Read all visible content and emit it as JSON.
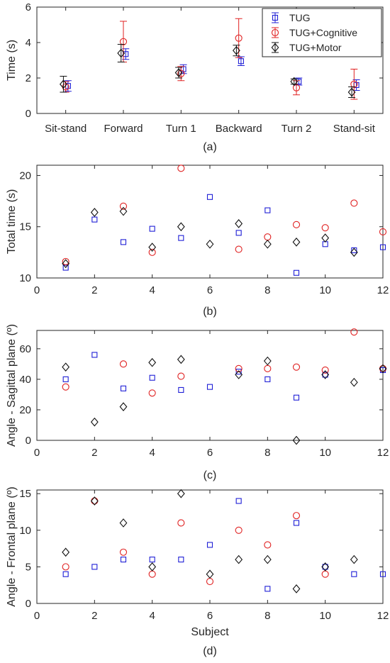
{
  "colors": {
    "TUG": "#1f1fd6",
    "TUG+Cognitive": "#e02020",
    "TUG+Motor": "#111111",
    "axis": "#262626"
  },
  "chart_data": [
    {
      "type": "scatter",
      "caption": "(a)",
      "xlabel": "",
      "ylabel": "Time (s)",
      "categories": [
        "Sit-stand",
        "Forward",
        "Turn 1",
        "Backward",
        "Turn 2",
        "Stand-sit"
      ],
      "ylim": [
        0,
        6
      ],
      "yticks": [
        0,
        2,
        4,
        6
      ],
      "legend": {
        "placement": "top-right",
        "entries": [
          "TUG",
          "TUG+Cognitive",
          "TUG+Motor"
        ]
      },
      "series": [
        {
          "name": "TUG",
          "marker": "square",
          "offset": 0.04,
          "values": [
            1.55,
            3.35,
            2.5,
            2.95,
            1.8,
            1.6
          ],
          "errors": [
            0.3,
            0.3,
            0.25,
            0.25,
            0.2,
            0.3
          ]
        },
        {
          "name": "TUG+Cognitive",
          "marker": "circle",
          "offset": 0,
          "values": [
            1.5,
            4.05,
            2.25,
            4.25,
            1.45,
            1.65
          ],
          "errors": [
            0.3,
            1.15,
            0.4,
            1.1,
            0.4,
            0.85
          ]
        },
        {
          "name": "TUG+Motor",
          "marker": "diamond",
          "offset": -0.04,
          "values": [
            1.65,
            3.4,
            2.3,
            3.55,
            1.8,
            1.2
          ],
          "errors": [
            0.45,
            0.5,
            0.3,
            0.3,
            0.15,
            0.3
          ]
        }
      ]
    },
    {
      "type": "scatter",
      "caption": "(b)",
      "xlabel": "",
      "ylabel": "Total time (s)",
      "xlim": [
        0,
        12
      ],
      "xticks": [
        0,
        2,
        4,
        6,
        8,
        10,
        12
      ],
      "ylim": [
        10,
        21
      ],
      "yticks": [
        10,
        15,
        20
      ],
      "series": [
        {
          "name": "TUG",
          "marker": "square",
          "x": [
            1,
            2,
            3,
            4,
            5,
            6,
            7,
            8,
            9,
            10,
            11,
            12
          ],
          "y": [
            11.0,
            15.7,
            13.5,
            14.8,
            13.9,
            17.9,
            14.4,
            16.6,
            10.5,
            13.3,
            12.7,
            13.0
          ]
        },
        {
          "name": "TUG+Cognitive",
          "marker": "circle",
          "x": [
            1,
            3,
            4,
            5,
            7,
            8,
            9,
            10,
            11,
            12
          ],
          "y": [
            11.6,
            17.0,
            12.5,
            20.7,
            12.8,
            14.0,
            15.2,
            14.9,
            17.3,
            14.5
          ]
        },
        {
          "name": "TUG+Motor",
          "marker": "diamond",
          "x": [
            1,
            2,
            3,
            4,
            5,
            6,
            7,
            8,
            9,
            10,
            11
          ],
          "y": [
            11.4,
            16.4,
            16.5,
            13.0,
            15.0,
            13.3,
            15.3,
            13.3,
            13.5,
            13.9,
            12.5
          ]
        }
      ]
    },
    {
      "type": "scatter",
      "caption": "(c)",
      "xlabel": "",
      "ylabel": "Angle - Sagittal plane (º)",
      "xlim": [
        0,
        12
      ],
      "xticks": [
        0,
        2,
        4,
        6,
        8,
        10,
        12
      ],
      "ylim": [
        0,
        72
      ],
      "yticks": [
        0,
        20,
        40,
        60
      ],
      "series": [
        {
          "name": "TUG",
          "marker": "square",
          "x": [
            1,
            2,
            3,
            4,
            5,
            6,
            7,
            8,
            9,
            10,
            12
          ],
          "y": [
            40,
            56,
            34,
            41,
            33,
            35,
            45,
            40,
            28,
            43,
            46
          ]
        },
        {
          "name": "TUG+Cognitive",
          "marker": "circle",
          "x": [
            1,
            3,
            4,
            5,
            7,
            8,
            9,
            10,
            11,
            12
          ],
          "y": [
            35,
            50,
            31,
            42,
            47,
            47,
            48,
            46,
            71,
            47
          ]
        },
        {
          "name": "TUG+Motor",
          "marker": "diamond",
          "x": [
            1,
            2,
            3,
            4,
            5,
            7,
            8,
            9,
            10,
            11,
            12
          ],
          "y": [
            48,
            12,
            22,
            51,
            53,
            43,
            52,
            0,
            43,
            38,
            47
          ]
        }
      ]
    },
    {
      "type": "scatter",
      "caption": "(d)",
      "xlabel": "Subject",
      "ylabel": "Angle - Frontal plane (º)",
      "xlim": [
        0,
        12
      ],
      "xticks": [
        0,
        2,
        4,
        6,
        8,
        10,
        12
      ],
      "ylim": [
        0,
        15.5
      ],
      "yticks": [
        0,
        5,
        10,
        15
      ],
      "series": [
        {
          "name": "TUG",
          "marker": "square",
          "x": [
            1,
            2,
            3,
            4,
            5,
            6,
            7,
            8,
            9,
            10,
            11,
            12
          ],
          "y": [
            4,
            5,
            6,
            6,
            6,
            8,
            14,
            2,
            11,
            5,
            4,
            4
          ]
        },
        {
          "name": "TUG+Cognitive",
          "marker": "circle",
          "x": [
            1,
            2,
            3,
            4,
            5,
            6,
            7,
            8,
            9,
            10
          ],
          "y": [
            5,
            14,
            7,
            4,
            11,
            3,
            10,
            8,
            12,
            4
          ]
        },
        {
          "name": "TUG+Motor",
          "marker": "diamond",
          "x": [
            1,
            2,
            3,
            4,
            5,
            6,
            7,
            8,
            9,
            10,
            11
          ],
          "y": [
            7,
            14,
            11,
            5,
            15,
            4,
            6,
            6,
            2,
            5,
            6
          ]
        }
      ]
    }
  ]
}
